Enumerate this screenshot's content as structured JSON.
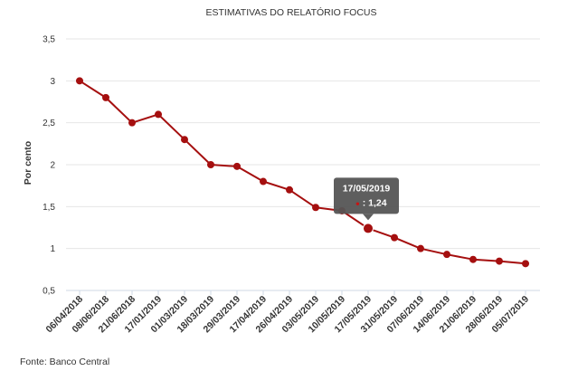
{
  "chart_data": {
    "type": "line",
    "title": "ESTIMATIVAS DO RELATÓRIO FOCUS",
    "xlabel": "",
    "ylabel": "Por cento",
    "ylim": [
      0.5,
      3.5
    ],
    "yticks": [
      "0,5",
      "1",
      "1,5",
      "2",
      "2,5",
      "3",
      "3,5"
    ],
    "grid": true,
    "categories": [
      "06/04/2018",
      "08/06/2018",
      "21/06/2018",
      "17/01/2019",
      "01/03/2019",
      "18/03/2019",
      "29/03/2019",
      "17/04/2019",
      "26/04/2019",
      "03/05/2019",
      "10/05/2019",
      "17/05/2019",
      "31/05/2019",
      "07/06/2019",
      "14/06/2019",
      "21/06/2019",
      "28/06/2019",
      "05/07/2019"
    ],
    "series": [
      {
        "values": [
          3.0,
          2.8,
          2.5,
          2.6,
          2.3,
          2.0,
          1.98,
          1.8,
          1.7,
          1.49,
          1.45,
          1.24,
          1.13,
          1.0,
          0.93,
          0.87,
          0.85,
          0.82
        ],
        "color": "#a50f0f"
      }
    ],
    "tooltip": {
      "date": "17/05/2019",
      "value_label": ": 1,24",
      "bullet": "●",
      "index": 11
    }
  },
  "footer": {
    "source": "Fonte: Banco Central"
  },
  "colors": {
    "line": "#a50f0f",
    "grid": "#e6e6e6",
    "axis_text": "#333333",
    "tooltip_bg": "#555555",
    "tooltip_text": "#ffffff",
    "tooltip_bullet": "#c81414"
  }
}
